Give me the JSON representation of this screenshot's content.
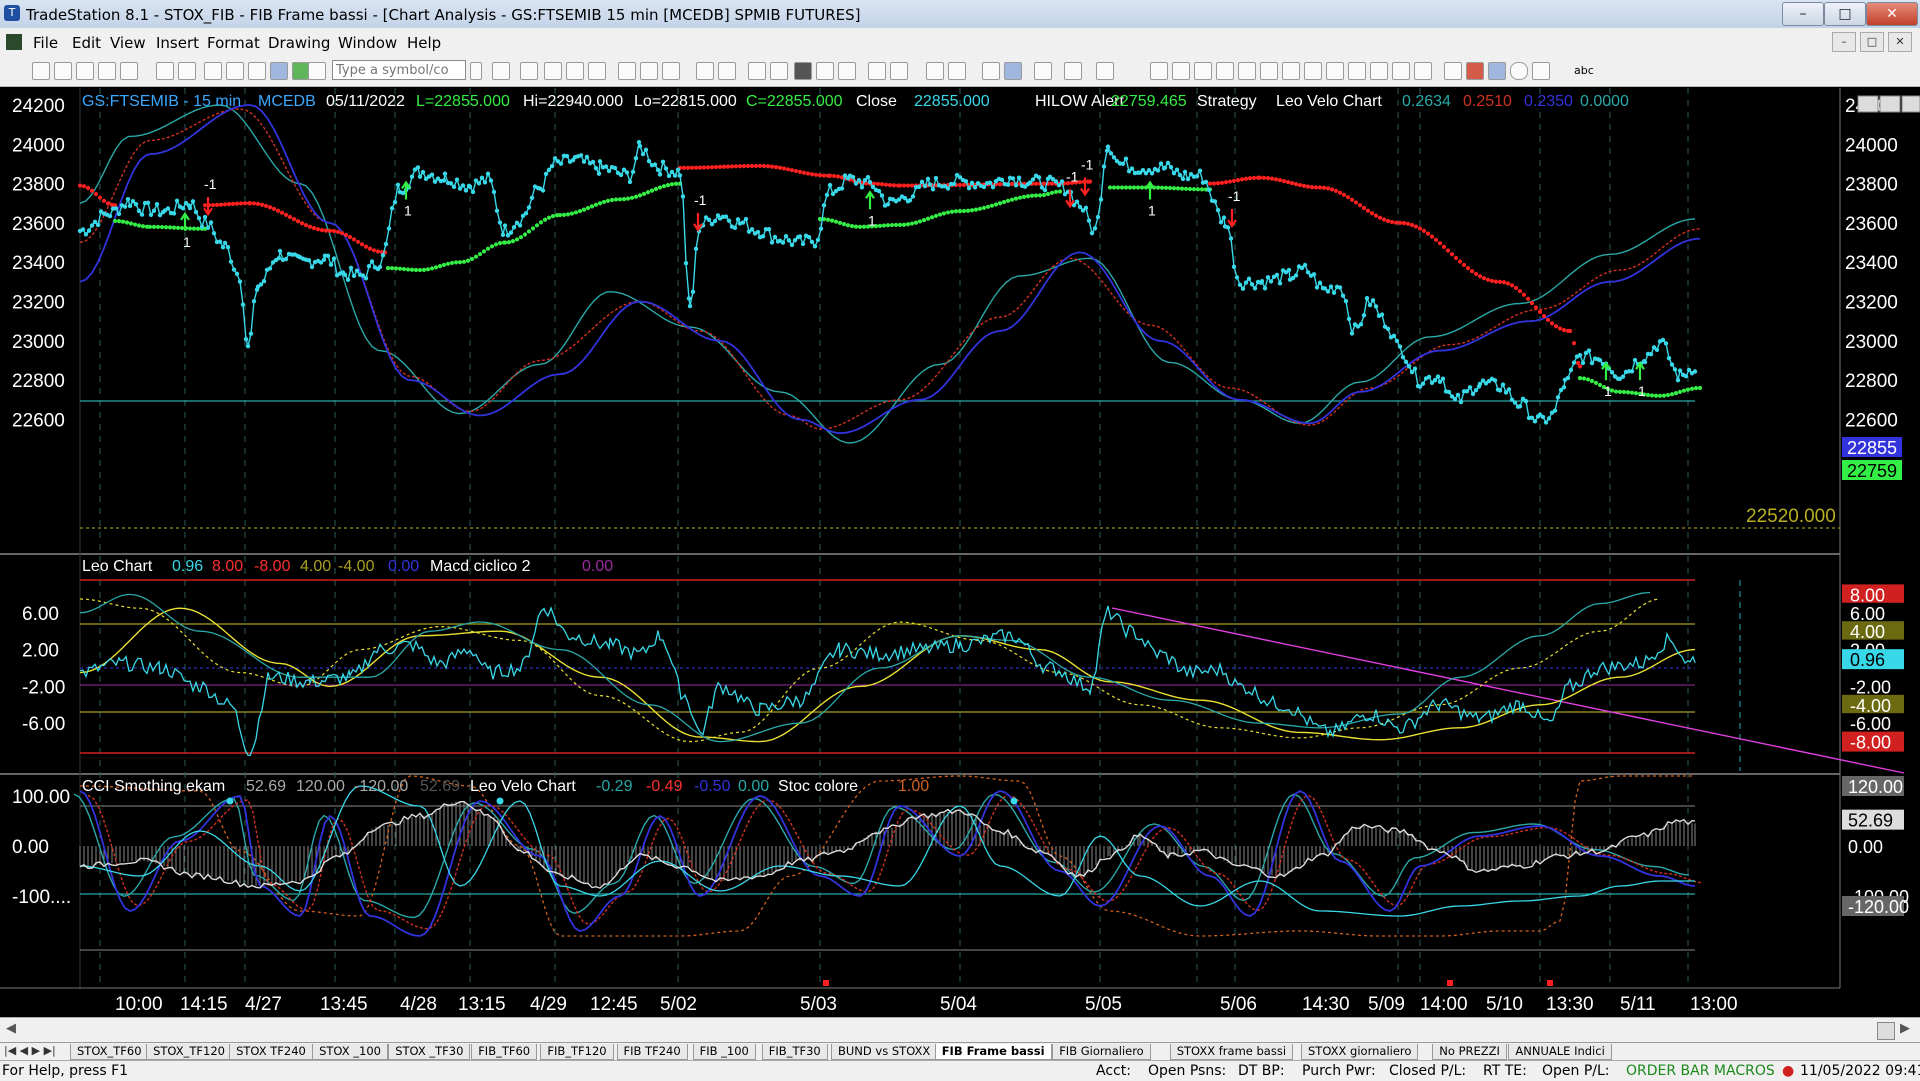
{
  "window": {
    "title": "TradeStation 8.1 - STOX_FIB - FIB Frame bassi - [Chart Analysis - GS:FTSEMIB  15 min  [MCEDB] SPMIB FUTURES]",
    "controls": [
      "–",
      "□",
      "✕"
    ],
    "mdi_controls": [
      "–",
      "□",
      "✕"
    ]
  },
  "menu": [
    "File",
    "Edit",
    "View",
    "Insert",
    "Format",
    "Drawing",
    "Window",
    "Help"
  ],
  "toolbar": {
    "symbol_placeholder": "Type a symbol/co",
    "text_tool": "abc"
  },
  "price_panel": {
    "symbol": "GS:FTSEMIB - 15 min",
    "exchange": "MCEDB",
    "date": "05/11/2022",
    "low": "L=22855.000",
    "high": "Hi=22940.000",
    "low2": "Lo=22815.000",
    "close": "C=22855.000",
    "close_label": "Close",
    "close_value": "22855.000",
    "hilow_label": "HILOW Alert",
    "hilow_value": "22759.465",
    "strategy_label": "Strategy",
    "leo_label": "Leo Velo Chart",
    "leo_v1": "0.2634",
    "leo_v2": "0.2510",
    "leo_v3": "0.2350",
    "leo_v4": "0.0000",
    "y_ticks": [
      "24200",
      "24000",
      "23800",
      "23600",
      "23400",
      "23200",
      "23000",
      "22800",
      "22600"
    ],
    "box_close": "22855",
    "box_hilow": "22759",
    "ref_price": "22520.000",
    "markers": [
      "-1",
      "1",
      "-1",
      "1",
      "-1",
      "1",
      "-1",
      "1",
      "-1",
      "1",
      "1"
    ]
  },
  "leo_panel": {
    "name": "Leo Chart",
    "v1": "0.96",
    "v2": "8.00",
    "v3": "-8.00",
    "v4": "4.00",
    "v5": "-4.00",
    "v6": "0.00",
    "macd": "Macd ciclico 2",
    "macd_v": "0.00",
    "y_ticks": [
      "6.00",
      "2.00",
      "-2.00",
      "-6.00"
    ],
    "boxes": [
      "8.00",
      "6.00",
      "4.00",
      "2.00",
      "0.96",
      "-2.00",
      "-4.00",
      "-6.00",
      "-8.00"
    ]
  },
  "cci_panel": {
    "name": "CCI Smothing ekam",
    "v1": "52.69",
    "v2": "120.00",
    "v3": "-120.00",
    "v4": "52.69",
    "leo": "Leo Velo Chart",
    "l1": "-0.29",
    "l2": "-0.49",
    "l3": "-0.50",
    "l4": "0.00",
    "stoc": "Stoc colore",
    "stoc_v": "1.00",
    "y_ticks": [
      "100.00",
      "0.00",
      "-100...."
    ],
    "boxes": [
      "120.00",
      "52.69",
      "0.00",
      "-100.00",
      "-120.00"
    ]
  },
  "x_labels": [
    "10:00",
    "14:15",
    "4/27",
    "13:45",
    "4/28",
    "13:15",
    "4/29",
    "12:45",
    "5/02",
    "5/03",
    "5/04",
    "5/05",
    "5/06",
    "14:30",
    "5/09",
    "14:00",
    "5/10",
    "13:30",
    "5/11",
    "13:00"
  ],
  "tabs": [
    "STOX_TF60",
    "STOX_TF120",
    "STOX TF240",
    "STOX _100",
    "STOX _TF30",
    "FIB_TF60",
    "FIB_TF120",
    "FIB TF240",
    "FIB _100",
    "FIB_TF30",
    "BUND vs STOXX",
    "FIB Frame bassi",
    "FIB Giornaliero",
    "STOXX frame bassi",
    "STOXX giornaliero",
    "No PREZZI",
    "ANNUALE Indici"
  ],
  "active_tab": "FIB Frame bassi",
  "status": {
    "help": "For Help, press F1",
    "acct": "Acct:",
    "open_psns": "Open Psns:",
    "dt_bp": "DT BP:",
    "purch": "Purch Pwr:",
    "closed_pl": "Closed P/L:",
    "rt_te": "RT TE:",
    "open_pl": "Open P/L:",
    "order_bar": "ORDER BAR  MACROS",
    "datetime": "11/05/2022 09:41"
  },
  "colors": {
    "cyan": "#38d8e8",
    "red": "#ff2020",
    "green": "#33ee44",
    "blue": "#3333dd",
    "yellow": "#e8e030",
    "teal": "#2aa8a8",
    "magenta": "#e040e0"
  }
}
